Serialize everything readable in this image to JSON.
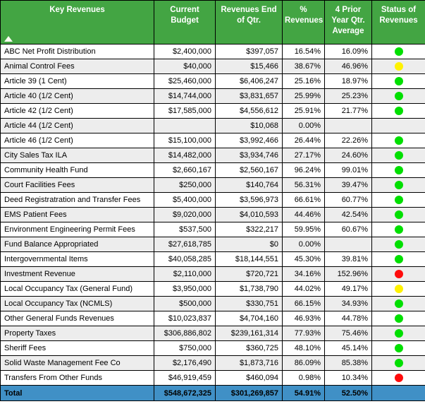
{
  "table": {
    "colors": {
      "header_green": "#43A543",
      "stripe_gray": "#EDEDED",
      "total_blue": "#4090C6",
      "grid_black": "#000000"
    },
    "status_colors": {
      "green": "#00DF00",
      "yellow": "#FFF200",
      "red": "#FF0C0C"
    },
    "columns": [
      {
        "label": "Key Revenues"
      },
      {
        "label": "Current Budget"
      },
      {
        "label": "Revenues End of Qtr."
      },
      {
        "label": "% Revenues"
      },
      {
        "label": "4 Prior Year Qtr. Average"
      },
      {
        "label": "Status of Revenues"
      }
    ],
    "sort_icon": "ascending-triangle",
    "rows": [
      {
        "name": "ABC Net Profit Distribution",
        "current_budget": "$2,400,000",
        "end_of_qtr": "$397,057",
        "pct_revenues": "16.54%",
        "prior_avg": "16.09%",
        "status": "green"
      },
      {
        "name": "Animal Control Fees",
        "current_budget": "$40,000",
        "end_of_qtr": "$15,466",
        "pct_revenues": "38.67%",
        "prior_avg": "46.96%",
        "status": "yellow"
      },
      {
        "name": "Article 39 (1 Cent)",
        "current_budget": "$25,460,000",
        "end_of_qtr": "$6,406,247",
        "pct_revenues": "25.16%",
        "prior_avg": "18.97%",
        "status": "green"
      },
      {
        "name": "Article 40 (1/2 Cent)",
        "current_budget": "$14,744,000",
        "end_of_qtr": "$3,831,657",
        "pct_revenues": "25.99%",
        "prior_avg": "25.23%",
        "status": "green"
      },
      {
        "name": "Article 42 (1/2 Cent)",
        "current_budget": "$17,585,000",
        "end_of_qtr": "$4,556,612",
        "pct_revenues": "25.91%",
        "prior_avg": "21.77%",
        "status": "green"
      },
      {
        "name": "Article 44 (1/2 Cent)",
        "current_budget": "",
        "end_of_qtr": "$10,068",
        "pct_revenues": "0.00%",
        "prior_avg": "",
        "status": null
      },
      {
        "name": "Article 46 (1/2 Cent)",
        "current_budget": "$15,100,000",
        "end_of_qtr": "$3,992,466",
        "pct_revenues": "26.44%",
        "prior_avg": "22.26%",
        "status": "green"
      },
      {
        "name": "City Sales Tax ILA",
        "current_budget": "$14,482,000",
        "end_of_qtr": "$3,934,746",
        "pct_revenues": "27.17%",
        "prior_avg": "24.60%",
        "status": "green"
      },
      {
        "name": "Community Health Fund",
        "current_budget": "$2,660,167",
        "end_of_qtr": "$2,560,167",
        "pct_revenues": "96.24%",
        "prior_avg": "99.01%",
        "status": "green"
      },
      {
        "name": "Court Facilities Fees",
        "current_budget": "$250,000",
        "end_of_qtr": "$140,764",
        "pct_revenues": "56.31%",
        "prior_avg": "39.47%",
        "status": "green"
      },
      {
        "name": "Deed Registratration and Transfer Fees",
        "current_budget": "$5,400,000",
        "end_of_qtr": "$3,596,973",
        "pct_revenues": "66.61%",
        "prior_avg": "60.77%",
        "status": "green"
      },
      {
        "name": "EMS Patient Fees",
        "current_budget": "$9,020,000",
        "end_of_qtr": "$4,010,593",
        "pct_revenues": "44.46%",
        "prior_avg": "42.54%",
        "status": "green"
      },
      {
        "name": "Environment Engineering Permit Fees",
        "current_budget": "$537,500",
        "end_of_qtr": "$322,217",
        "pct_revenues": "59.95%",
        "prior_avg": "60.67%",
        "status": "green"
      },
      {
        "name": "Fund Balance Appropriated",
        "current_budget": "$27,618,785",
        "end_of_qtr": "$0",
        "pct_revenues": "0.00%",
        "prior_avg": "",
        "status": "green"
      },
      {
        "name": "Intergovernmental Items",
        "current_budget": "$40,058,285",
        "end_of_qtr": "$18,144,551",
        "pct_revenues": "45.30%",
        "prior_avg": "39.81%",
        "status": "green"
      },
      {
        "name": "Investment Revenue",
        "current_budget": "$2,110,000",
        "end_of_qtr": "$720,721",
        "pct_revenues": "34.16%",
        "prior_avg": "152.96%",
        "status": "red"
      },
      {
        "name": "Local Occupancy Tax (General Fund)",
        "current_budget": "$3,950,000",
        "end_of_qtr": "$1,738,790",
        "pct_revenues": "44.02%",
        "prior_avg": "49.17%",
        "status": "yellow"
      },
      {
        "name": "Local Occupancy Tax (NCMLS)",
        "current_budget": "$500,000",
        "end_of_qtr": "$330,751",
        "pct_revenues": "66.15%",
        "prior_avg": "34.93%",
        "status": "green"
      },
      {
        "name": "Other General Funds Revenues",
        "current_budget": "$10,023,837",
        "end_of_qtr": "$4,704,160",
        "pct_revenues": "46.93%",
        "prior_avg": "44.78%",
        "status": "green"
      },
      {
        "name": "Property Taxes",
        "current_budget": "$306,886,802",
        "end_of_qtr": "$239,161,314",
        "pct_revenues": "77.93%",
        "prior_avg": "75.46%",
        "status": "green"
      },
      {
        "name": "Sheriff Fees",
        "current_budget": "$750,000",
        "end_of_qtr": "$360,725",
        "pct_revenues": "48.10%",
        "prior_avg": "45.14%",
        "status": "green"
      },
      {
        "name": "Solid Waste Management Fee Co",
        "current_budget": "$2,176,490",
        "end_of_qtr": "$1,873,716",
        "pct_revenues": "86.09%",
        "prior_avg": "85.38%",
        "status": "green"
      },
      {
        "name": "Transfers From Other Funds",
        "current_budget": "$46,919,459",
        "end_of_qtr": "$460,094",
        "pct_revenues": "0.98%",
        "prior_avg": "10.34%",
        "status": "red"
      }
    ],
    "total": {
      "name": "Total",
      "current_budget": "$548,672,325",
      "end_of_qtr": "$301,269,857",
      "pct_revenues": "54.91%",
      "prior_avg": "52.50%",
      "status": ""
    }
  }
}
